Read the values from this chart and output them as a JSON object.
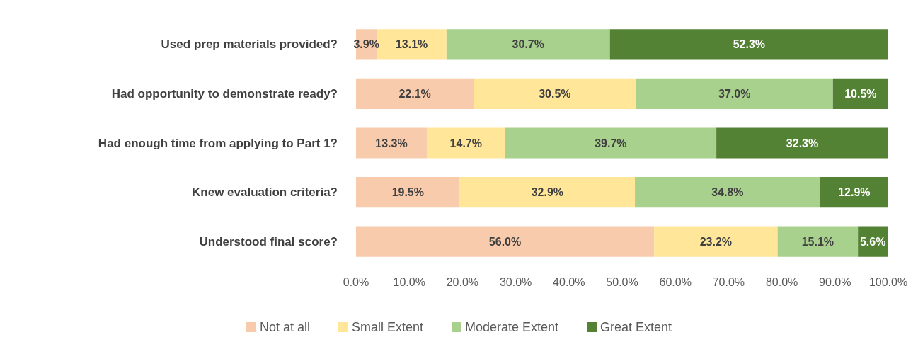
{
  "chart_data": {
    "type": "bar",
    "orientation": "horizontal",
    "stacked": true,
    "legend": "bottom",
    "categories": [
      "Used prep materials provided?",
      "Had opportunity to demonstrate ready?",
      "Had enough time from applying to Part 1?",
      "Knew evaluation criteria?",
      "Understood final score?"
    ],
    "xlim": [
      0,
      100
    ],
    "xticks": [
      {
        "value": 0,
        "label": "0.0%"
      },
      {
        "value": 10,
        "label": "10.0%"
      },
      {
        "value": 20,
        "label": "20.0%"
      },
      {
        "value": 30,
        "label": "30.0%"
      },
      {
        "value": 40,
        "label": "40.0%"
      },
      {
        "value": 50,
        "label": "50.0%"
      },
      {
        "value": 60,
        "label": "60.0%"
      },
      {
        "value": 70,
        "label": "70.0%"
      },
      {
        "value": 80,
        "label": "80.0%"
      },
      {
        "value": 90,
        "label": "90.0%"
      },
      {
        "value": 100,
        "label": "100.0%"
      }
    ],
    "series": [
      {
        "name": "Not at all",
        "color": "#f8cbad",
        "values": [
          3.9,
          22.1,
          13.3,
          19.5,
          56.0
        ],
        "value_labels": [
          "3.9%",
          "22.1%",
          "13.3%",
          "19.5%",
          "56.0%"
        ]
      },
      {
        "name": "Small Extent",
        "color": "#ffe699",
        "values": [
          13.1,
          30.5,
          14.7,
          32.9,
          23.2
        ],
        "value_labels": [
          "13.1%",
          "30.5%",
          "14.7%",
          "32.9%",
          "23.2%"
        ]
      },
      {
        "name": "Moderate Extent",
        "color": "#a9d18e",
        "values": [
          30.7,
          37.0,
          39.7,
          34.8,
          15.1
        ],
        "value_labels": [
          "30.7%",
          "37.0%",
          "39.7%",
          "34.8%",
          "15.1%"
        ]
      },
      {
        "name": "Great Extent",
        "color": "#548235",
        "values": [
          52.3,
          10.5,
          32.3,
          12.9,
          5.6
        ],
        "value_labels": [
          "52.3%",
          "10.5%",
          "32.3%",
          "12.9%",
          "5.6%"
        ]
      }
    ]
  }
}
